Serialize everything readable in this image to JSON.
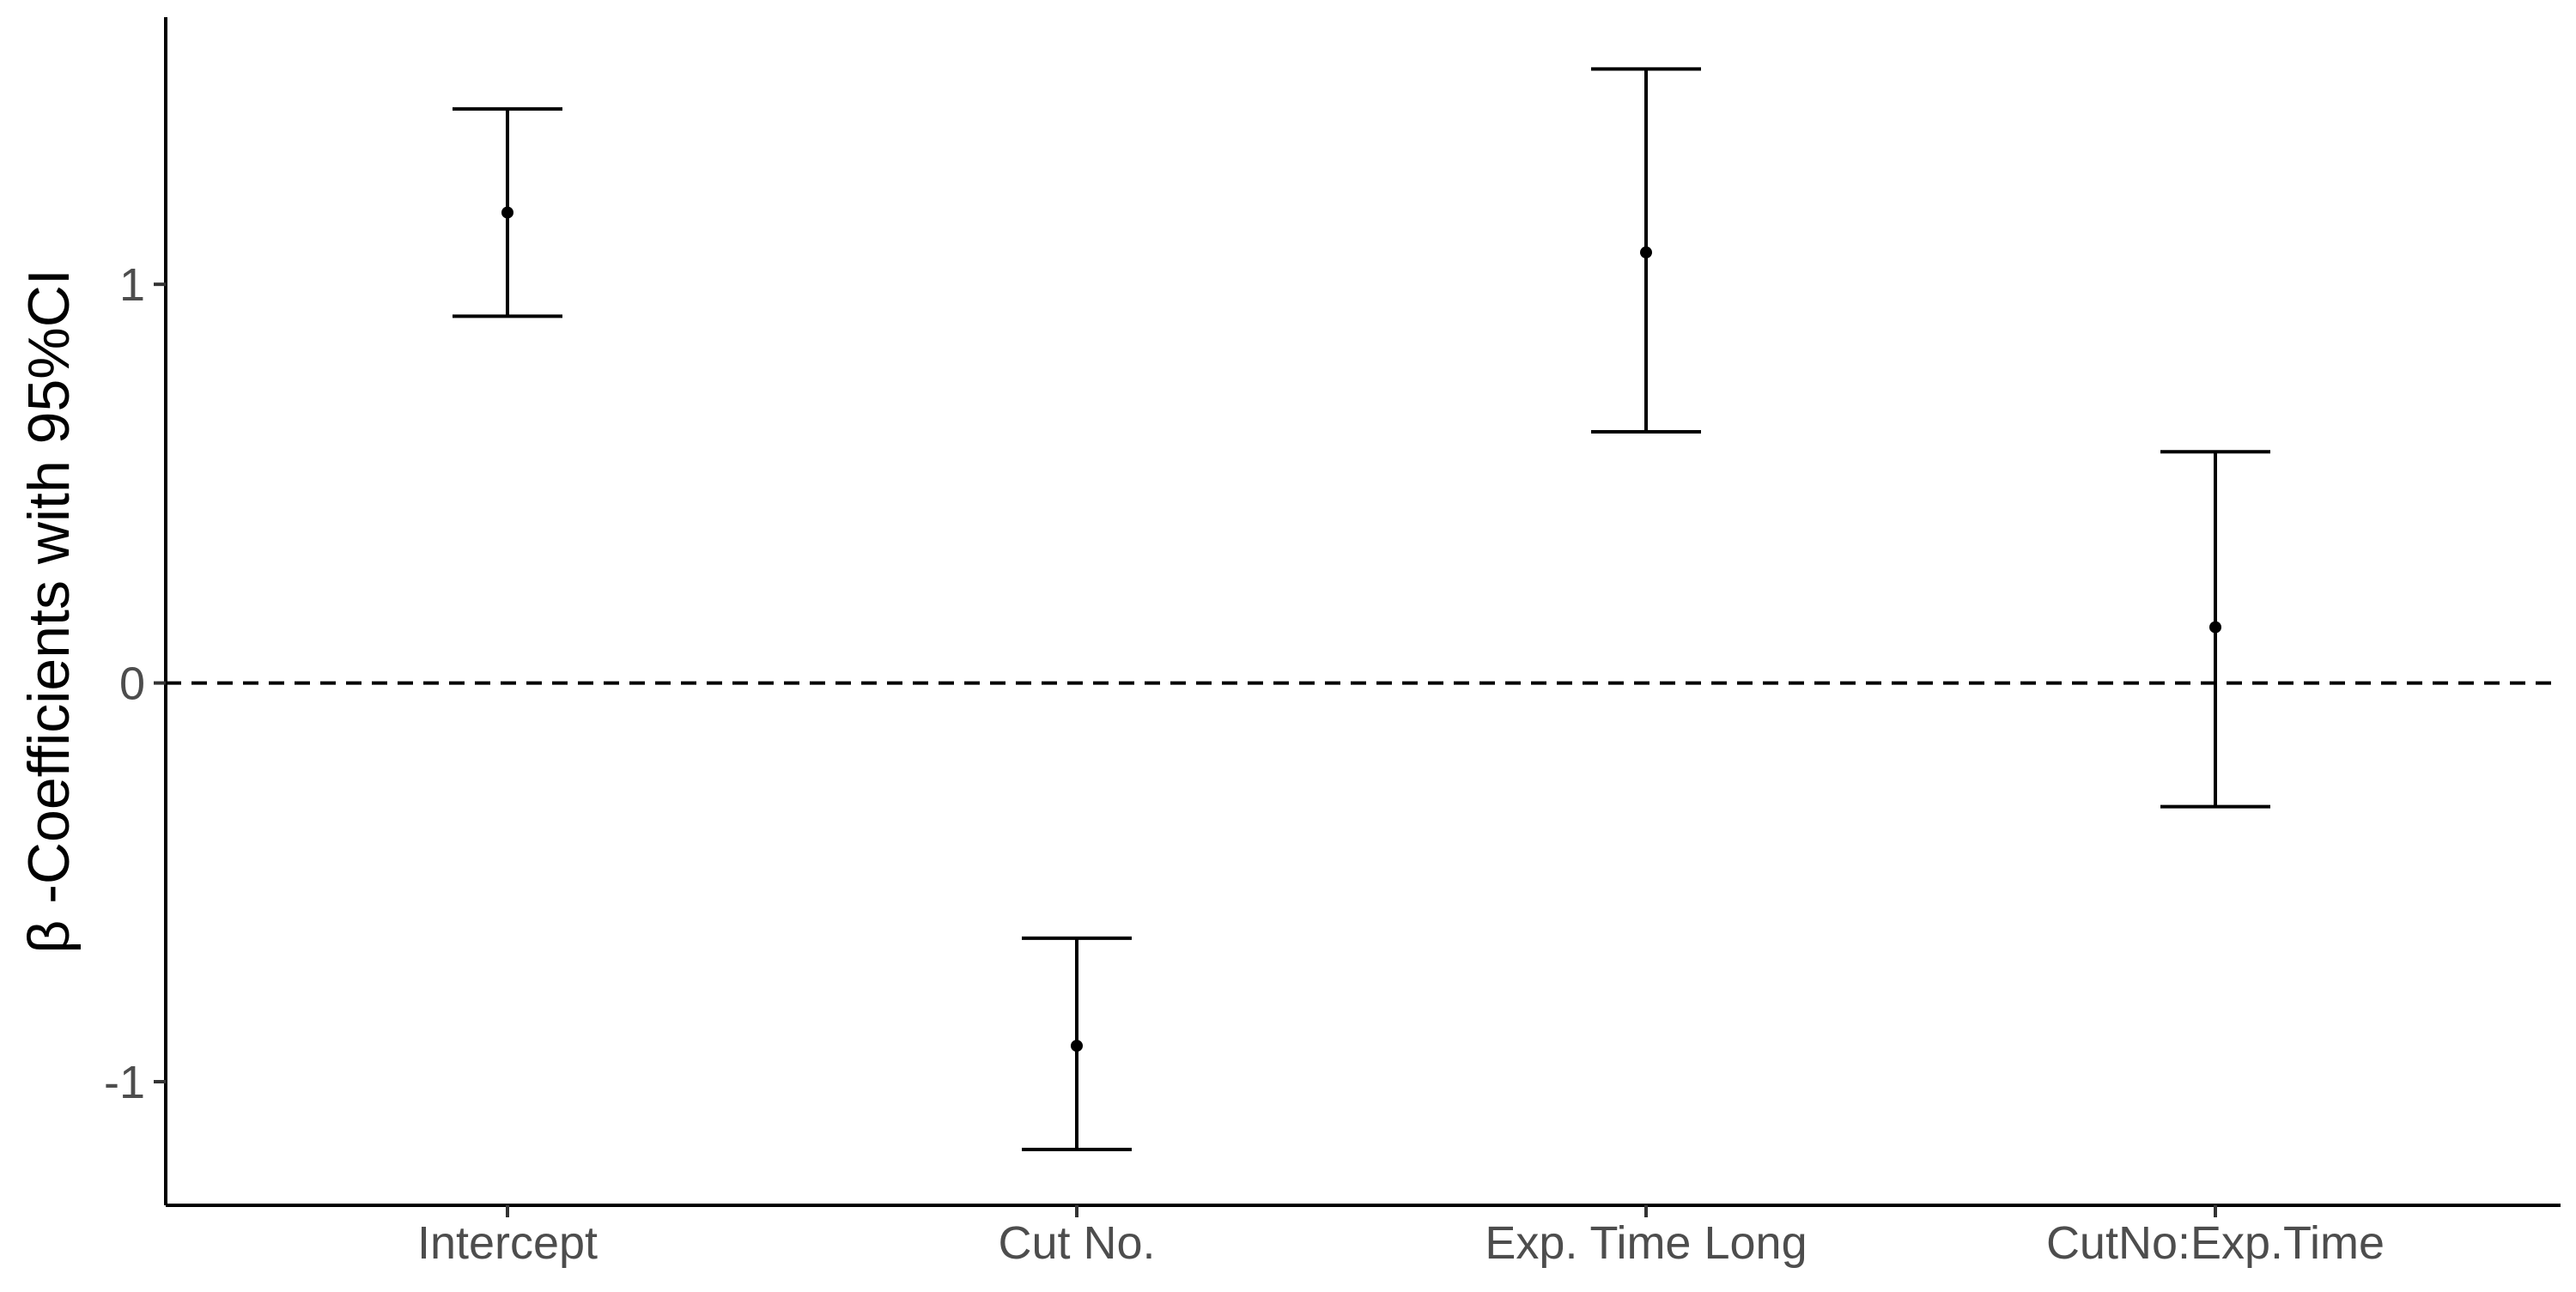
{
  "chart_data": {
    "type": "scatter",
    "subtype": "point-with-errorbars",
    "title": "",
    "xlabel": "",
    "ylabel": "β  -Coefficients with 95%CI",
    "categories": [
      "Intercept",
      "Cut No.",
      "Exp. Time Long",
      "CutNo:Exp.Time"
    ],
    "series": [
      {
        "estimates": [
          1.18,
          -0.91,
          1.08,
          0.14
        ],
        "ci_lower": [
          0.92,
          -1.17,
          0.63,
          -0.31
        ],
        "ci_upper": [
          1.44,
          -0.64,
          1.54,
          0.58
        ]
      }
    ],
    "yticks": [
      -1,
      0,
      1
    ],
    "ytick_labels": [
      "-1",
      "0",
      "1"
    ],
    "ylim": [
      -1.31,
      1.67
    ],
    "reference_line": {
      "y": 0,
      "style": "dashed"
    },
    "grid": false,
    "legend": "none",
    "colors": {
      "points": "#000000",
      "errorbars": "#000000",
      "axis": "#000000",
      "tick_labels": "#4d4d4d"
    }
  }
}
